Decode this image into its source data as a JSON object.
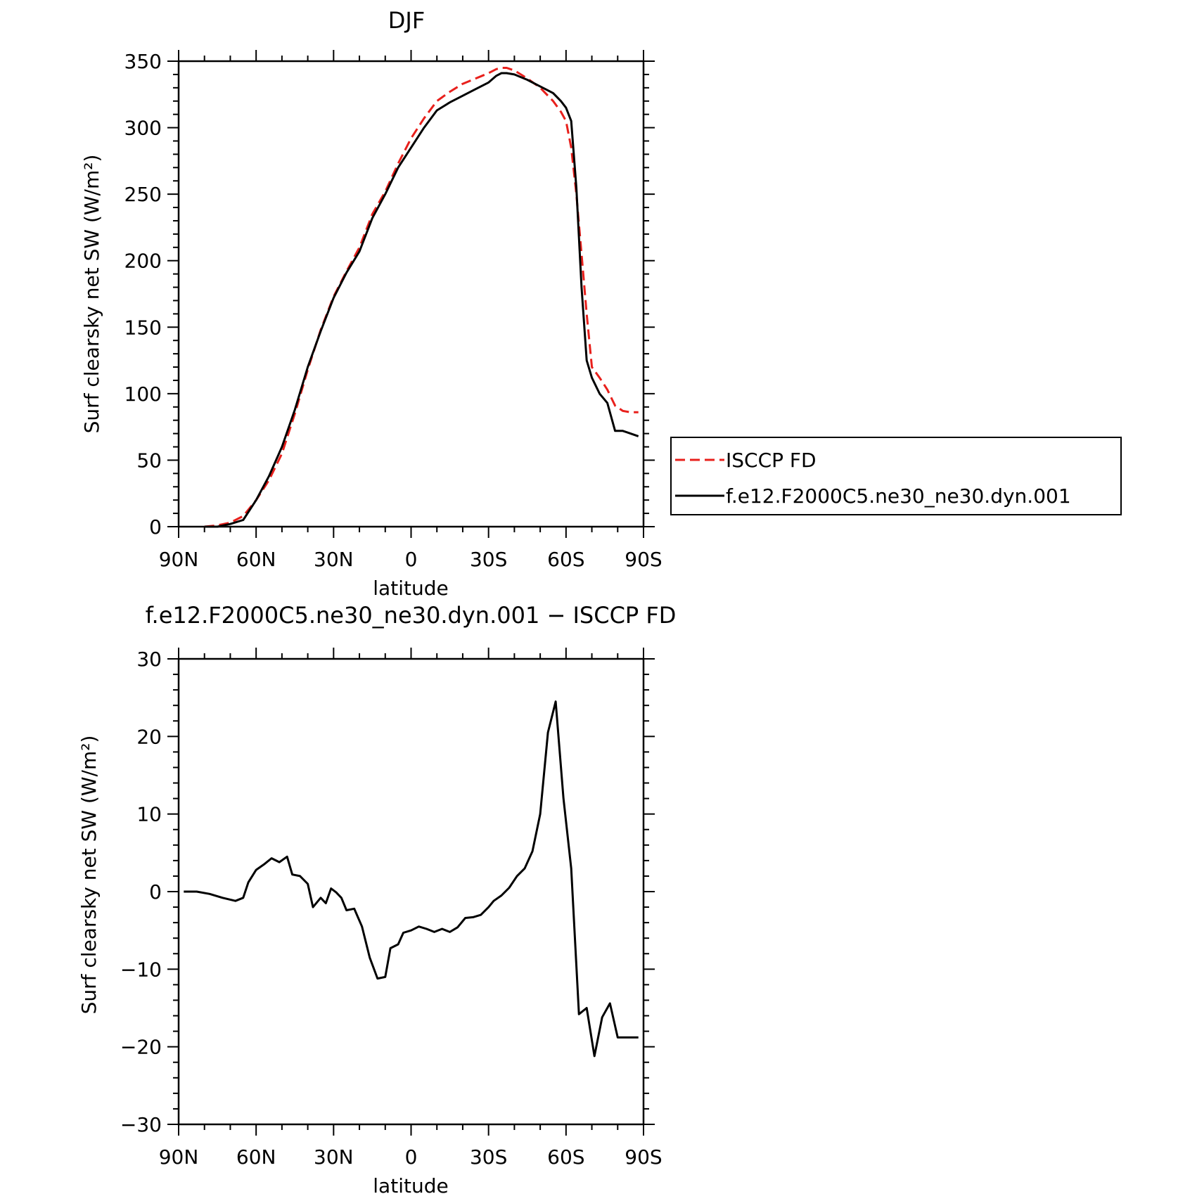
{
  "chart_data": [
    {
      "type": "line",
      "title": "DJF",
      "xlabel": "latitude",
      "ylabel": "Surf clearsky net SW (W/m²)",
      "xlim": [
        90,
        -90
      ],
      "ylim": [
        0,
        350
      ],
      "x_tick_values": [
        90,
        60,
        30,
        0,
        -30,
        -60,
        -90
      ],
      "x_tick_labels": [
        "90N",
        "60N",
        "30N",
        "0",
        "30S",
        "60S",
        "90S"
      ],
      "y_tick_values": [
        0,
        50,
        100,
        150,
        200,
        250,
        300,
        350
      ],
      "y_tick_labels": [
        "0",
        "50",
        "100",
        "150",
        "200",
        "250",
        "300",
        "350"
      ],
      "grid": false,
      "legend_position": "right",
      "series": [
        {
          "name": "ISCCP FD",
          "color": "#e8201c",
          "dash": "dashed",
          "x": [
            80,
            75,
            70,
            65,
            60,
            55,
            50,
            45,
            40,
            35,
            30,
            25,
            20,
            15,
            10,
            5,
            0,
            -5,
            -10,
            -15,
            -20,
            -25,
            -30,
            -33,
            -35,
            -37,
            -40,
            -45,
            -50,
            -55,
            -58,
            -60,
            -62,
            -64,
            -66,
            -68,
            -70,
            -73,
            -76,
            -79,
            -82,
            -85,
            -88
          ],
          "values": [
            0,
            1,
            3,
            8,
            20,
            35,
            55,
            85,
            118,
            148,
            173,
            192,
            210,
            235,
            252,
            273,
            292,
            307,
            320,
            327,
            333,
            337,
            341,
            344,
            345,
            345,
            343,
            337,
            330,
            320,
            312,
            305,
            285,
            250,
            205,
            160,
            120,
            112,
            103,
            91,
            87,
            86,
            86
          ]
        },
        {
          "name": "f.e12.F2000C5.ne30_ne30.dyn.001",
          "color": "#000000",
          "dash": "solid",
          "x": [
            80,
            75,
            70,
            65,
            60,
            55,
            50,
            45,
            40,
            35,
            30,
            25,
            20,
            15,
            10,
            5,
            0,
            -5,
            -10,
            -15,
            -20,
            -25,
            -30,
            -33,
            -35,
            -37,
            -40,
            -45,
            -50,
            -55,
            -58,
            -60,
            -62,
            -64,
            -66,
            -68,
            -70,
            -73,
            -76,
            -79,
            -82,
            -85,
            -88
          ],
          "values": [
            0,
            0,
            2,
            5,
            20,
            38,
            60,
            88,
            120,
            147,
            172,
            191,
            207,
            232,
            250,
            270,
            285,
            300,
            313,
            319,
            324,
            329,
            334,
            339,
            341,
            341,
            340,
            336,
            331,
            326,
            320,
            315,
            305,
            255,
            180,
            125,
            112,
            100,
            93,
            72,
            72,
            70,
            68
          ]
        }
      ]
    },
    {
      "type": "line",
      "title": "f.e12.F2000C5.ne30_ne30.dyn.001 − ISCCP FD",
      "xlabel": "latitude",
      "ylabel": "Surf clearsky net SW (W/m²)",
      "xlim": [
        90,
        -90
      ],
      "ylim": [
        -30,
        30
      ],
      "x_tick_values": [
        90,
        60,
        30,
        0,
        -30,
        -60,
        -90
      ],
      "x_tick_labels": [
        "90N",
        "60N",
        "30N",
        "0",
        "30S",
        "60S",
        "90S"
      ],
      "y_tick_values": [
        -30,
        -20,
        -10,
        0,
        10,
        20,
        30
      ],
      "y_tick_labels": [
        "−30",
        "−20",
        "−10",
        "0",
        "10",
        "20",
        "30"
      ],
      "grid": false,
      "series": [
        {
          "color": "#000000",
          "dash": "solid",
          "x": [
            88,
            83,
            78,
            73,
            68,
            65,
            63,
            60,
            57,
            54,
            51,
            48,
            46,
            43,
            40,
            38,
            35,
            33,
            31,
            29,
            27,
            25,
            22,
            19,
            16,
            13,
            10,
            8,
            5,
            3,
            0,
            -3,
            -6,
            -9,
            -12,
            -15,
            -18,
            -21,
            -24,
            -27,
            -30,
            -32,
            -35,
            -38,
            -41,
            -44,
            -47,
            -50,
            -53,
            -56,
            -59,
            -62,
            -65,
            -68,
            -71,
            -74,
            -77,
            -80,
            -83,
            -86,
            -88
          ],
          "values": [
            0,
            0,
            -0.3,
            -0.8,
            -1.2,
            -0.8,
            1.2,
            2.8,
            3.5,
            4.3,
            3.8,
            4.5,
            2.2,
            2.0,
            1.0,
            -2.0,
            -0.8,
            -1.5,
            0.4,
            -0.1,
            -0.8,
            -2.4,
            -2.2,
            -4.5,
            -8.5,
            -11.2,
            -11.0,
            -7.3,
            -6.8,
            -5.3,
            -5.0,
            -4.5,
            -4.8,
            -5.2,
            -4.8,
            -5.2,
            -4.6,
            -3.4,
            -3.3,
            -3.0,
            -2.0,
            -1.2,
            -0.5,
            0.5,
            2.0,
            3.0,
            5.2,
            10.0,
            20.5,
            24.5,
            12.0,
            3.0,
            -15.8,
            -15.0,
            -21.2,
            -16.2,
            -14.4,
            -18.8,
            -18.8,
            -18.8,
            -18.8
          ]
        }
      ]
    }
  ]
}
